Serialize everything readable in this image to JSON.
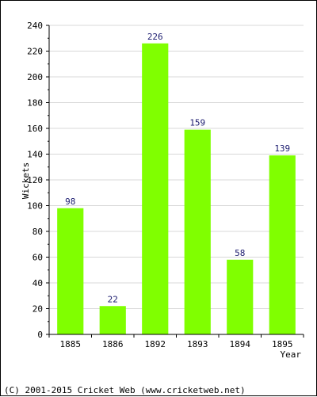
{
  "chart_data": {
    "type": "bar",
    "categories": [
      "1885",
      "1886",
      "1892",
      "1893",
      "1894",
      "1895"
    ],
    "values": [
      98,
      22,
      226,
      159,
      58,
      139
    ],
    "title": "",
    "xlabel": "Year",
    "ylabel": "Wickets",
    "ylim": [
      0,
      240
    ],
    "yticks": [
      0,
      20,
      40,
      60,
      80,
      100,
      120,
      140,
      160,
      180,
      200,
      220,
      240
    ],
    "grid": true,
    "bar_color": "#80ff00",
    "grid_color": "#d8d8d8"
  },
  "copyright": "(C) 2001-2015 Cricket Web (www.cricketweb.net)"
}
